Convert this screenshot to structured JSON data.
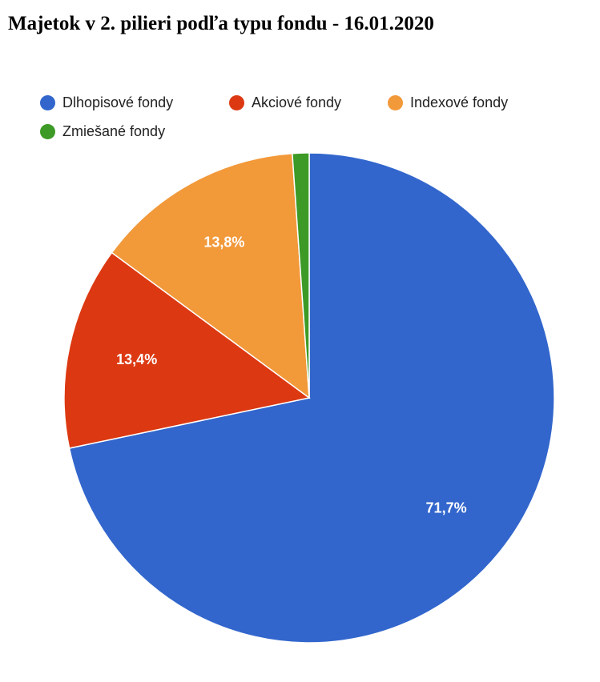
{
  "chart_data": {
    "type": "pie",
    "title": "Majetok v 2. pilieri podľa typu fondu - 16.01.2020",
    "legend_position": "top",
    "slices": [
      {
        "name": "Dlhopisové fondy",
        "value": 71.7,
        "label": "71,7%",
        "color": "#3266cc"
      },
      {
        "name": "Akciové fondy",
        "value": 13.4,
        "label": "13,4%",
        "color": "#dc3912"
      },
      {
        "name": "Indexové fondy",
        "value": 13.8,
        "label": "13,8%",
        "color": "#f2993a"
      },
      {
        "name": "Zmiešané fondy",
        "value": 1.1,
        "label": "",
        "color": "#3d9a26"
      }
    ]
  }
}
